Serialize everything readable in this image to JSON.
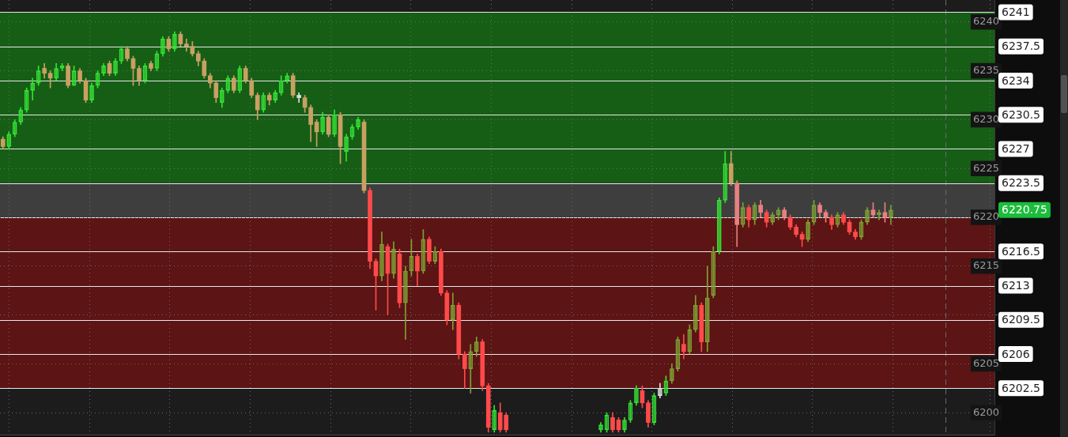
{
  "chart_data": {
    "type": "candlestick",
    "categories": [
      null,
      null,
      null,
      null,
      null,
      null,
      null,
      null,
      null,
      null,
      null,
      null,
      null,
      null,
      null,
      null,
      null,
      null,
      null,
      null,
      null,
      null,
      null,
      null,
      null,
      null,
      null,
      null,
      null,
      null,
      null,
      null,
      null,
      null,
      null,
      null,
      null,
      null,
      null,
      null,
      null,
      null,
      null,
      null,
      null,
      null,
      null,
      null,
      null,
      null,
      null,
      null,
      null,
      null,
      null,
      null,
      null,
      null,
      null,
      null,
      null,
      null,
      null,
      null,
      null,
      null,
      null,
      null,
      null,
      null,
      null,
      null,
      null,
      null,
      null,
      null,
      null,
      null,
      null,
      null,
      null,
      null,
      null,
      null,
      null,
      null,
      null,
      null,
      null,
      null,
      null,
      null,
      null,
      null,
      null,
      null,
      null,
      null,
      null,
      null,
      null,
      null,
      null,
      null,
      null,
      null,
      null,
      null,
      null,
      null,
      null,
      null,
      null,
      null,
      null,
      null,
      null,
      null,
      null,
      null,
      null,
      null,
      null,
      null,
      null,
      null,
      null,
      null,
      null,
      null,
      null,
      null,
      null,
      null,
      null,
      null,
      null,
      null,
      null,
      null,
      null,
      null,
      null,
      null,
      null,
      null,
      null,
      null,
      null,
      null,
      null,
      null,
      null,
      null,
      null,
      null,
      null,
      null,
      null,
      null,
      null,
      null,
      null,
      null,
      null,
      null,
      null,
      null
    ],
    "ohlc": [
      [
        6228,
        6228.25,
        6227,
        6227.25
      ],
      [
        6227.25,
        6228.75,
        6227,
        6228.5
      ],
      [
        6228.5,
        6230,
        6228.25,
        6229.75
      ],
      [
        6229.75,
        6231.25,
        6229.5,
        6231
      ],
      [
        6231,
        6233.25,
        6230.75,
        6233
      ],
      [
        6233,
        6234.25,
        6232,
        6233.75
      ],
      [
        6233.75,
        6235.5,
        6233.5,
        6235
      ],
      [
        6235.25,
        6235.75,
        6234.25,
        6234.75
      ],
      [
        6234.75,
        6235,
        6233.25,
        6234.25
      ],
      [
        6234.25,
        6235.75,
        6234,
        6235.25
      ],
      [
        6235.25,
        6235.75,
        6235,
        6235.5
      ],
      [
        6235.5,
        6235.75,
        6233.25,
        6233.5
      ],
      [
        6233.5,
        6235.5,
        6233.5,
        6235
      ],
      [
        6235,
        6235.25,
        6233.75,
        6234
      ],
      [
        6234,
        6234.25,
        6231.75,
        6232
      ],
      [
        6232,
        6233.75,
        6231.75,
        6233.5
      ],
      [
        6233.5,
        6235,
        6233.25,
        6234.75
      ],
      [
        6234.75,
        6235.75,
        6234.5,
        6235.5
      ],
      [
        6235.75,
        6236,
        6234.5,
        6234.75
      ],
      [
        6234.75,
        6236.25,
        6234.5,
        6236
      ],
      [
        6236,
        6237.5,
        6235.75,
        6237.25
      ],
      [
        6237.25,
        6237.5,
        6236,
        6236.25
      ],
      [
        6236.25,
        6236.5,
        6233.5,
        6235.25
      ],
      [
        6235.25,
        6235.5,
        6233.5,
        6234
      ],
      [
        6234,
        6235.75,
        6233.75,
        6235.5
      ],
      [
        6235.75,
        6236,
        6235,
        6235.25
      ],
      [
        6235.25,
        6237,
        6235,
        6236.75
      ],
      [
        6236.75,
        6238.5,
        6236.5,
        6238.25
      ],
      [
        6238.25,
        6238.5,
        6237,
        6237.25
      ],
      [
        6237.25,
        6239,
        6237,
        6238.75
      ],
      [
        6238.75,
        6239,
        6237.5,
        6237.75
      ],
      [
        6237.75,
        6238.25,
        6237,
        6237.5
      ],
      [
        6237.5,
        6238,
        6236.5,
        6236.75
      ],
      [
        6236.75,
        6237,
        6235.5,
        6236
      ],
      [
        6236,
        6236.25,
        6234.25,
        6234.5
      ],
      [
        6234.5,
        6234.75,
        6233.25,
        6233.75
      ],
      [
        6233.75,
        6234,
        6231.75,
        6232.25
      ],
      [
        6231.75,
        6233.25,
        6231.25,
        6233
      ],
      [
        6233,
        6234.5,
        6232.75,
        6234.25
      ],
      [
        6234.25,
        6234.5,
        6232.75,
        6233
      ],
      [
        6233,
        6235.5,
        6232.75,
        6235.25
      ],
      [
        6235.25,
        6235.5,
        6233.75,
        6234
      ],
      [
        6234,
        6234.25,
        6232.25,
        6232.5
      ],
      [
        6232.5,
        6232.75,
        6230,
        6231
      ],
      [
        6231,
        6232.75,
        6230.75,
        6232.5
      ],
      [
        6232.5,
        6232.75,
        6231.5,
        6232
      ],
      [
        6232,
        6233,
        6231.75,
        6232.75
      ],
      [
        6232.75,
        6234.5,
        6232.5,
        6234
      ],
      [
        6234,
        6234.75,
        6233.75,
        6234.5
      ],
      [
        6234.5,
        6234.75,
        6232.25,
        6232.5
      ],
      [
        6232.5,
        6232.75,
        6231.75,
        6232.25
      ],
      [
        6232.25,
        6232.5,
        6230.75,
        6231.25
      ],
      [
        6231.25,
        6231.5,
        6227.75,
        6229.5
      ],
      [
        6229.75,
        6230,
        6227.25,
        6228.75
      ],
      [
        6228.75,
        6230.75,
        6228.5,
        6230.25
      ],
      [
        6230.25,
        6230.5,
        6228.25,
        6228.5
      ],
      [
        6228.5,
        6231,
        6228.25,
        6230.5
      ],
      [
        6230.5,
        6230.75,
        6225.5,
        6227.25
      ],
      [
        6226.75,
        6228.5,
        6225.75,
        6228.25
      ],
      [
        6228.25,
        6229.5,
        6228,
        6229.25
      ],
      [
        6229.25,
        6230.25,
        6229,
        6230
      ],
      [
        6229.75,
        6230,
        6222.5,
        6222.75
      ],
      [
        6222.75,
        6223,
        6214.75,
        6215.5
      ],
      [
        6215.5,
        6215.75,
        6210.5,
        6214
      ],
      [
        6214,
        6218.5,
        6213.5,
        6217.25
      ],
      [
        6217,
        6217.25,
        6210,
        6214.25
      ],
      [
        6214.25,
        6217.5,
        6213.75,
        6216.75
      ],
      [
        6216.25,
        6216.75,
        6210.75,
        6211.25
      ],
      [
        6211.25,
        6215,
        6207.5,
        6214.5
      ],
      [
        6214.5,
        6217.75,
        6214,
        6216
      ],
      [
        6216,
        6216.25,
        6213,
        6214.5
      ],
      [
        6214.5,
        6218.75,
        6214.25,
        6217.75
      ],
      [
        6217.75,
        6218,
        6215.25,
        6215.5
      ],
      [
        6215.5,
        6217,
        6215.25,
        6216.5
      ],
      [
        6216.5,
        6216.75,
        6212,
        6212.25
      ],
      [
        6212.25,
        6212.5,
        6209,
        6209.5
      ],
      [
        6209.5,
        6212.25,
        6208.5,
        6211
      ],
      [
        6211,
        6211.25,
        6205.5,
        6206
      ],
      [
        6206,
        6206.25,
        6202.5,
        6204.5
      ],
      [
        6204.5,
        6207,
        6202,
        6206.25
      ],
      [
        6206.25,
        6207.75,
        6205.75,
        6207.25
      ],
      [
        6207.25,
        6207.5,
        6202.25,
        6202.75
      ],
      [
        6202.75,
        6203,
        6198,
        6198.5
      ],
      [
        6198.25,
        6200.75,
        6198,
        6200.25
      ],
      [
        6200,
        6201,
        6198,
        6198.25
      ],
      [
        6199.75,
        6200,
        6198,
        6198.25
      ],
      null,
      null,
      null,
      null,
      null,
      null,
      null,
      null,
      null,
      null,
      null,
      null,
      null,
      null,
      null,
      [
        6198.25,
        6199,
        6198,
        6198.75
      ],
      [
        6198.25,
        6200,
        6198,
        6199.75
      ],
      [
        6199.5,
        6200,
        6198,
        6198.25
      ],
      [
        6199.25,
        6199.5,
        6198,
        6198.25
      ],
      [
        6198.25,
        6199.5,
        6198,
        6199.25
      ],
      [
        6199.25,
        6201.25,
        6199,
        6201
      ],
      [
        6201,
        6202.75,
        6200.75,
        6202.5
      ],
      [
        6202.25,
        6202.75,
        6200.5,
        6201
      ],
      [
        6201,
        6201.25,
        6198.5,
        6199
      ],
      [
        6199,
        6202,
        6198.75,
        6201.75
      ],
      [
        6201.75,
        6203,
        6201.5,
        6202.5
      ],
      [
        6202,
        6203.75,
        6201.75,
        6203.25
      ],
      [
        6203.25,
        6205,
        6203,
        6204.5
      ],
      [
        6204.5,
        6207.75,
        6204.25,
        6207.5
      ],
      [
        6207,
        6208,
        6205.5,
        6206.25
      ],
      [
        6206.25,
        6209,
        6206,
        6208.5
      ],
      [
        6208.5,
        6212,
        6208.25,
        6211
      ],
      [
        6211,
        6211.25,
        6206.25,
        6207.25
      ],
      [
        6207.25,
        6215,
        6206.25,
        6211.75
      ],
      [
        6212,
        6217,
        6211.75,
        6216.5
      ],
      [
        6216.5,
        6222,
        6216.25,
        6221.75
      ],
      [
        6221.75,
        6226.75,
        6221.5,
        6225.5
      ],
      [
        6225.5,
        6226.75,
        6223.25,
        6223.5
      ],
      [
        6223.5,
        6223.75,
        6217,
        6219.25
      ],
      [
        6219.25,
        6221.5,
        6219,
        6221
      ],
      [
        6221,
        6221.25,
        6219,
        6219.75
      ],
      [
        6219.75,
        6221.5,
        6219.25,
        6221.25
      ],
      [
        6221.25,
        6221.75,
        6220,
        6220.5
      ],
      [
        6220.5,
        6220.75,
        6219,
        6219.5
      ],
      [
        6219.5,
        6220.5,
        6219.25,
        6220.25
      ],
      [
        6220.25,
        6221,
        6219.75,
        6220.75
      ],
      [
        6220.75,
        6221,
        6219.75,
        6220
      ],
      [
        6220,
        6220.25,
        6218.75,
        6219
      ],
      [
        6219,
        6219.25,
        6218,
        6218.25
      ],
      [
        6218.25,
        6218.5,
        6217,
        6217.75
      ],
      [
        6217.75,
        6219.75,
        6217.5,
        6219.5
      ],
      [
        6219.5,
        6221.75,
        6219.25,
        6221.25
      ],
      [
        6221.25,
        6221.5,
        6220,
        6220.5
      ],
      [
        6220.5,
        6220.75,
        6219.5,
        6220
      ],
      [
        6220,
        6220.25,
        6218.75,
        6219.25
      ],
      [
        6219.25,
        6220.5,
        6219,
        6220.25
      ],
      [
        6220.25,
        6220.5,
        6219.25,
        6219.5
      ],
      [
        6219.5,
        6219.75,
        6218.25,
        6218.5
      ],
      [
        6218.5,
        6218.75,
        6217.75,
        6218
      ],
      [
        6218,
        6219.75,
        6217.75,
        6219.5
      ],
      [
        6219.5,
        6221,
        6219.25,
        6220.75
      ],
      [
        6220.75,
        6221.5,
        6220,
        6220.25
      ],
      [
        6220.25,
        6220.75,
        6219.75,
        6220.5
      ],
      [
        6220.5,
        6221.5,
        6219.5,
        6220
      ],
      [
        6220,
        6221.25,
        6219.25,
        6220.75
      ],
      null,
      null,
      null,
      null,
      null,
      null,
      null,
      null,
      null,
      null,
      null,
      null,
      null,
      null,
      null,
      null,
      null
    ],
    "colors": [
      "#c9a063",
      "#35e035",
      "#35e035",
      "#35e035",
      "#35e035",
      "#35e035",
      "#35e035",
      "#c9a063",
      "#c9a063",
      "#35e035",
      "#35e035",
      "#c9a063",
      "#35e035",
      "#c9a063",
      "#c9a063",
      "#35e035",
      "#35e035",
      "#35e035",
      "#c9a063",
      "#35e035",
      "#35e035",
      "#c9a063",
      "#c9a063",
      "#c9a063",
      "#35e035",
      "#c9a063",
      "#35e035",
      "#35e035",
      "#c9a063",
      "#35e035",
      "#c9a063",
      "#c9a063",
      "#c9a063",
      "#c9a063",
      "#c9a063",
      "#c9a063",
      "#c9a063",
      "#35e035",
      "#35e035",
      "#c9a063",
      "#35e035",
      "#c9a063",
      "#c9a063",
      "#c9a063",
      "#35e035",
      "#c9a063",
      "#35e035",
      "#35e035",
      "#35e035",
      "#c9a063",
      "#dcdcdc",
      "#c9a063",
      "#c9a063",
      "#c9a063",
      "#35e035",
      "#c9a063",
      "#35e035",
      "#c9a063",
      "#35e035",
      "#35e035",
      "#35e035",
      "#c9a063",
      "#ff4a4a",
      "#ff4a4a",
      "#7fa035",
      "#ff4a4a",
      "#7fa035",
      "#ff4a4a",
      "#7fa035",
      "#7fa035",
      "#ff4a4a",
      "#7fa035",
      "#ff4a4a",
      "#7fa035",
      "#ff4a4a",
      "#ff4a4a",
      "#7fa035",
      "#ff4a4a",
      "#ff4a4a",
      "#7fa035",
      "#7fa035",
      "#ff4a4a",
      "#ff4a4a",
      "#35e035",
      "#ff4a4a",
      "#ff4a4a",
      null,
      null,
      null,
      null,
      null,
      null,
      null,
      null,
      null,
      null,
      null,
      null,
      null,
      null,
      null,
      "#35e035",
      "#35e035",
      "#ff4a4a",
      "#ff4a4a",
      "#35e035",
      "#35e035",
      "#35e035",
      "#ff4a4a",
      "#ff4a4a",
      "#35e035",
      "#dcdcdc",
      "#35e035",
      "#7fa035",
      "#7fa035",
      "#ff4a4a",
      "#7fa035",
      "#7fa035",
      "#ff4a4a",
      "#7fa035",
      "#7fa035",
      "#35e035",
      "#35e035",
      "#c9a063",
      "#e88080",
      "#7fa035",
      "#ff4a4a",
      "#7fa035",
      "#e88080",
      "#ff4a4a",
      "#7fa035",
      "#7fa035",
      "#e88080",
      "#ff4a4a",
      "#ff4a4a",
      "#ff4a4a",
      "#7fa035",
      "#7fa035",
      "#e88080",
      "#e88080",
      "#ff4a4a",
      "#7fa035",
      "#ff4a4a",
      "#ff4a4a",
      "#ff4a4a",
      "#7fa035",
      "#7fa035",
      "#e88080",
      "#7fa035",
      "#e88080",
      "#7fa035",
      null,
      null,
      null,
      null,
      null,
      null,
      null,
      null,
      null,
      null,
      null,
      null,
      null,
      null,
      null,
      null,
      null
    ],
    "ylim": [
      6197.75,
      6242.25
    ],
    "yticks": [
      6200,
      6205,
      {
        "value": 6210,
        "label": null
      },
      6215,
      6220,
      6225,
      6230,
      6235,
      6240
    ],
    "grid": true,
    "tick_labels": "y",
    "ref_lines": [
      {
        "axis": "y",
        "value": 6241,
        "label": "6241",
        "color": "#e8e8e8"
      },
      {
        "axis": "y",
        "value": 6237.5,
        "label": "6237.5",
        "color": "#e8e8e8"
      },
      {
        "axis": "y",
        "value": 6234,
        "label": "6234",
        "color": "#e8e8e8"
      },
      {
        "axis": "y",
        "value": 6230.5,
        "label": "6230.5",
        "color": "#e8e8e8"
      },
      {
        "axis": "y",
        "value": 6227,
        "label": "6227",
        "color": "#e8e8e8"
      },
      {
        "axis": "y",
        "value": 6223.5,
        "label": "6223.5",
        "color": "#e8e8e8"
      },
      {
        "axis": "y",
        "value": 6220,
        "color": "#e8e8e8"
      },
      {
        "axis": "y",
        "value": 6216.5,
        "label": "6216.5",
        "color": "#e8e8e8"
      },
      {
        "axis": "y",
        "value": 6213,
        "label": "6213",
        "color": "#e8e8e8"
      },
      {
        "axis": "y",
        "value": 6209.5,
        "label": "6209.5",
        "color": "#e8e8e8"
      },
      {
        "axis": "y",
        "value": 6206,
        "label": "6206",
        "color": "#e8e8e8"
      },
      {
        "axis": "y",
        "value": 6202.5,
        "label": "6202.5",
        "color": "#e8e8e8"
      }
    ],
    "bands": [
      {
        "axis": "y",
        "from": 6223.5,
        "to": 6241,
        "color": "#165e16"
      },
      {
        "axis": "y",
        "from": 6220,
        "to": 6223.5,
        "color": "#3e3e3e"
      },
      {
        "axis": "y",
        "from": 6202.5,
        "to": 6220,
        "color": "#5c1414"
      }
    ],
    "annotations": [
      "6220.75"
    ]
  }
}
